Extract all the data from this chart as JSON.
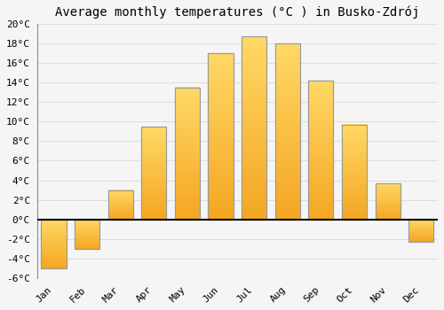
{
  "title": "Average monthly temperatures (°C ) in Busko-Zdrój",
  "months": [
    "Jan",
    "Feb",
    "Mar",
    "Apr",
    "May",
    "Jun",
    "Jul",
    "Aug",
    "Sep",
    "Oct",
    "Nov",
    "Dec"
  ],
  "values": [
    -5.0,
    -3.0,
    3.0,
    9.5,
    13.5,
    17.0,
    18.7,
    18.0,
    14.2,
    9.7,
    3.7,
    -2.3
  ],
  "bar_color_bottom": "#F5A623",
  "bar_color_top": "#FFD966",
  "bar_edge_color": "#999999",
  "background_color": "#f5f5f5",
  "plot_bg_color": "#f5f5f5",
  "grid_color": "#dddddd",
  "ylim": [
    -6,
    20
  ],
  "yticks": [
    -6,
    -4,
    -2,
    0,
    2,
    4,
    6,
    8,
    10,
    12,
    14,
    16,
    18,
    20
  ],
  "ytick_labels": [
    "-6°C",
    "-4°C",
    "-2°C",
    "0°C",
    "2°C",
    "4°C",
    "6°C",
    "8°C",
    "10°C",
    "12°C",
    "14°C",
    "16°C",
    "18°C",
    "20°C"
  ],
  "title_fontsize": 10,
  "tick_fontsize": 8,
  "font_family": "monospace",
  "bar_width": 0.75
}
